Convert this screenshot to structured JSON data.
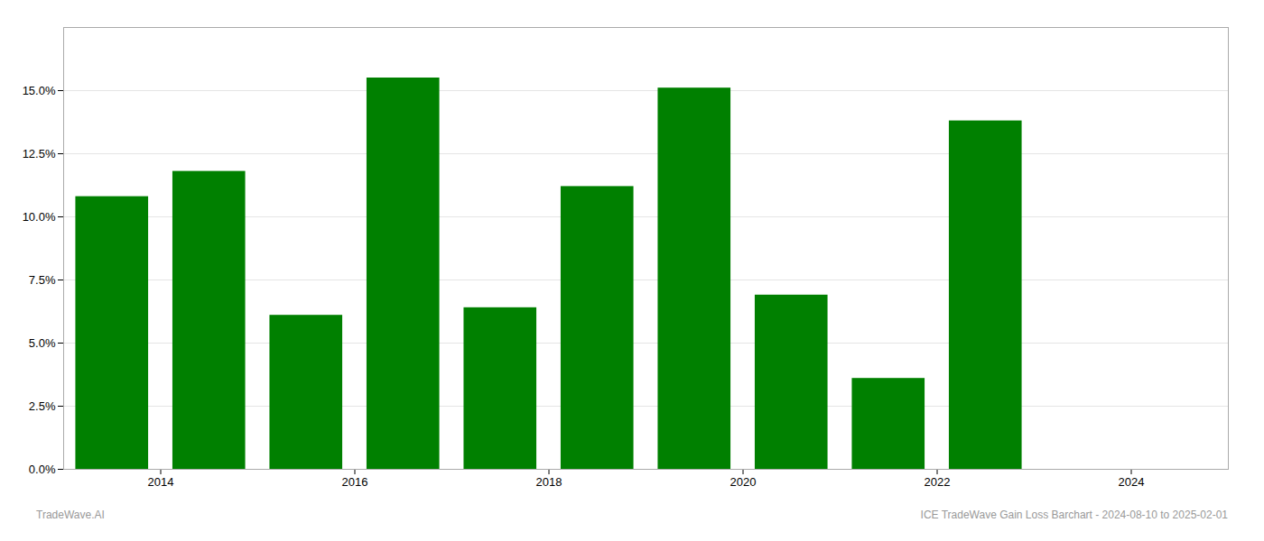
{
  "chart_data": {
    "type": "bar",
    "x": [
      2013,
      2014,
      2015,
      2016,
      2017,
      2018,
      2019,
      2020,
      2021,
      2022
    ],
    "values": [
      0.108,
      0.118,
      0.061,
      0.155,
      0.064,
      0.112,
      0.151,
      0.069,
      0.036,
      0.138
    ],
    "color": "#008000",
    "xlim": [
      2012.5,
      2024.5
    ],
    "xticks": [
      {
        "value": 2013.5,
        "label": "2014"
      },
      {
        "value": 2015.5,
        "label": "2016"
      },
      {
        "value": 2017.5,
        "label": "2018"
      },
      {
        "value": 2019.5,
        "label": "2020"
      },
      {
        "value": 2021.5,
        "label": "2022"
      },
      {
        "value": 2023.5,
        "label": "2024"
      }
    ],
    "ylim": [
      0,
      0.175
    ],
    "yticks": [
      {
        "value": 0.0,
        "label": "0.0%"
      },
      {
        "value": 0.025,
        "label": "2.5%"
      },
      {
        "value": 0.05,
        "label": "5.0%"
      },
      {
        "value": 0.075,
        "label": "7.5%"
      },
      {
        "value": 0.1,
        "label": "10.0%"
      },
      {
        "value": 0.125,
        "label": "12.5%"
      },
      {
        "value": 0.15,
        "label": "15.0%"
      }
    ],
    "grid": true,
    "annotations": [
      "TradeWave.AI",
      "ICE TradeWave Gain Loss Barchart - 2024-08-10 to 2025-02-01"
    ]
  }
}
